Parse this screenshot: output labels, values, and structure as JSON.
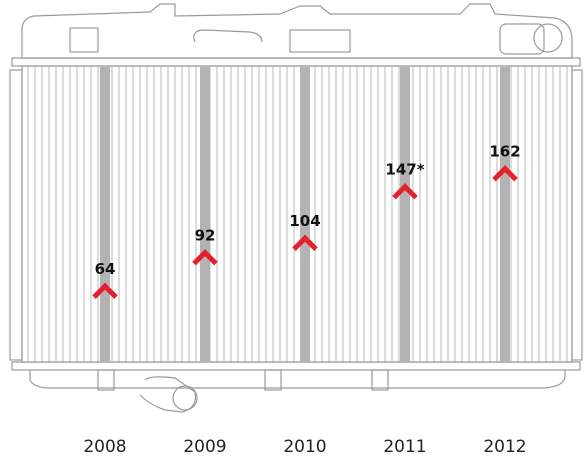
{
  "chart_data": {
    "type": "marker",
    "categories": [
      "2008",
      "2009",
      "2010",
      "2011",
      "2012"
    ],
    "values": [
      64,
      92,
      104,
      147,
      162
    ],
    "value_labels": [
      "64",
      "92",
      "104",
      "147*",
      "162"
    ],
    "color": "#e3202b",
    "ylim": [
      0,
      250
    ]
  }
}
